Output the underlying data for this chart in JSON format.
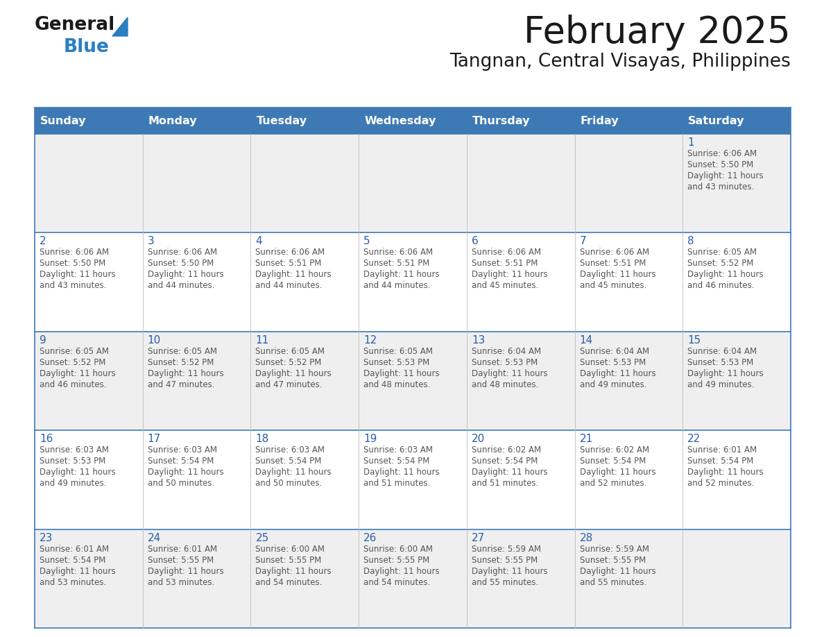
{
  "title": "February 2025",
  "subtitle": "Tangnan, Central Visayas, Philippines",
  "days_of_week": [
    "Sunday",
    "Monday",
    "Tuesday",
    "Wednesday",
    "Thursday",
    "Friday",
    "Saturday"
  ],
  "header_bg": "#3d7ab5",
  "header_text": "#ffffff",
  "row_bg_light": "#efefef",
  "row_bg_white": "#ffffff",
  "day_num_color": "#2a5da8",
  "info_text_color": "#555555",
  "border_color": "#3d7ab5",
  "logo_general_color": "#1a1a1a",
  "logo_blue_color": "#2a7fc1",
  "logo_triangle_color": "#2a7fc1",
  "calendar_data": [
    {
      "day": 1,
      "col": 6,
      "row": 0,
      "sunrise": "6:06 AM",
      "sunset": "5:50 PM",
      "hours": "11",
      "minutes": "43"
    },
    {
      "day": 2,
      "col": 0,
      "row": 1,
      "sunrise": "6:06 AM",
      "sunset": "5:50 PM",
      "hours": "11",
      "minutes": "43"
    },
    {
      "day": 3,
      "col": 1,
      "row": 1,
      "sunrise": "6:06 AM",
      "sunset": "5:50 PM",
      "hours": "11",
      "minutes": "44"
    },
    {
      "day": 4,
      "col": 2,
      "row": 1,
      "sunrise": "6:06 AM",
      "sunset": "5:51 PM",
      "hours": "11",
      "minutes": "44"
    },
    {
      "day": 5,
      "col": 3,
      "row": 1,
      "sunrise": "6:06 AM",
      "sunset": "5:51 PM",
      "hours": "11",
      "minutes": "44"
    },
    {
      "day": 6,
      "col": 4,
      "row": 1,
      "sunrise": "6:06 AM",
      "sunset": "5:51 PM",
      "hours": "11",
      "minutes": "45"
    },
    {
      "day": 7,
      "col": 5,
      "row": 1,
      "sunrise": "6:06 AM",
      "sunset": "5:51 PM",
      "hours": "11",
      "minutes": "45"
    },
    {
      "day": 8,
      "col": 6,
      "row": 1,
      "sunrise": "6:05 AM",
      "sunset": "5:52 PM",
      "hours": "11",
      "minutes": "46"
    },
    {
      "day": 9,
      "col": 0,
      "row": 2,
      "sunrise": "6:05 AM",
      "sunset": "5:52 PM",
      "hours": "11",
      "minutes": "46"
    },
    {
      "day": 10,
      "col": 1,
      "row": 2,
      "sunrise": "6:05 AM",
      "sunset": "5:52 PM",
      "hours": "11",
      "minutes": "47"
    },
    {
      "day": 11,
      "col": 2,
      "row": 2,
      "sunrise": "6:05 AM",
      "sunset": "5:52 PM",
      "hours": "11",
      "minutes": "47"
    },
    {
      "day": 12,
      "col": 3,
      "row": 2,
      "sunrise": "6:05 AM",
      "sunset": "5:53 PM",
      "hours": "11",
      "minutes": "48"
    },
    {
      "day": 13,
      "col": 4,
      "row": 2,
      "sunrise": "6:04 AM",
      "sunset": "5:53 PM",
      "hours": "11",
      "minutes": "48"
    },
    {
      "day": 14,
      "col": 5,
      "row": 2,
      "sunrise": "6:04 AM",
      "sunset": "5:53 PM",
      "hours": "11",
      "minutes": "49"
    },
    {
      "day": 15,
      "col": 6,
      "row": 2,
      "sunrise": "6:04 AM",
      "sunset": "5:53 PM",
      "hours": "11",
      "minutes": "49"
    },
    {
      "day": 16,
      "col": 0,
      "row": 3,
      "sunrise": "6:03 AM",
      "sunset": "5:53 PM",
      "hours": "11",
      "minutes": "49"
    },
    {
      "day": 17,
      "col": 1,
      "row": 3,
      "sunrise": "6:03 AM",
      "sunset": "5:54 PM",
      "hours": "11",
      "minutes": "50"
    },
    {
      "day": 18,
      "col": 2,
      "row": 3,
      "sunrise": "6:03 AM",
      "sunset": "5:54 PM",
      "hours": "11",
      "minutes": "50"
    },
    {
      "day": 19,
      "col": 3,
      "row": 3,
      "sunrise": "6:03 AM",
      "sunset": "5:54 PM",
      "hours": "11",
      "minutes": "51"
    },
    {
      "day": 20,
      "col": 4,
      "row": 3,
      "sunrise": "6:02 AM",
      "sunset": "5:54 PM",
      "hours": "11",
      "minutes": "51"
    },
    {
      "day": 21,
      "col": 5,
      "row": 3,
      "sunrise": "6:02 AM",
      "sunset": "5:54 PM",
      "hours": "11",
      "minutes": "52"
    },
    {
      "day": 22,
      "col": 6,
      "row": 3,
      "sunrise": "6:01 AM",
      "sunset": "5:54 PM",
      "hours": "11",
      "minutes": "52"
    },
    {
      "day": 23,
      "col": 0,
      "row": 4,
      "sunrise": "6:01 AM",
      "sunset": "5:54 PM",
      "hours": "11",
      "minutes": "53"
    },
    {
      "day": 24,
      "col": 1,
      "row": 4,
      "sunrise": "6:01 AM",
      "sunset": "5:55 PM",
      "hours": "11",
      "minutes": "53"
    },
    {
      "day": 25,
      "col": 2,
      "row": 4,
      "sunrise": "6:00 AM",
      "sunset": "5:55 PM",
      "hours": "11",
      "minutes": "54"
    },
    {
      "day": 26,
      "col": 3,
      "row": 4,
      "sunrise": "6:00 AM",
      "sunset": "5:55 PM",
      "hours": "11",
      "minutes": "54"
    },
    {
      "day": 27,
      "col": 4,
      "row": 4,
      "sunrise": "5:59 AM",
      "sunset": "5:55 PM",
      "hours": "11",
      "minutes": "55"
    },
    {
      "day": 28,
      "col": 5,
      "row": 4,
      "sunrise": "5:59 AM",
      "sunset": "5:55 PM",
      "hours": "11",
      "minutes": "55"
    }
  ],
  "num_rows": 5,
  "num_cols": 7
}
